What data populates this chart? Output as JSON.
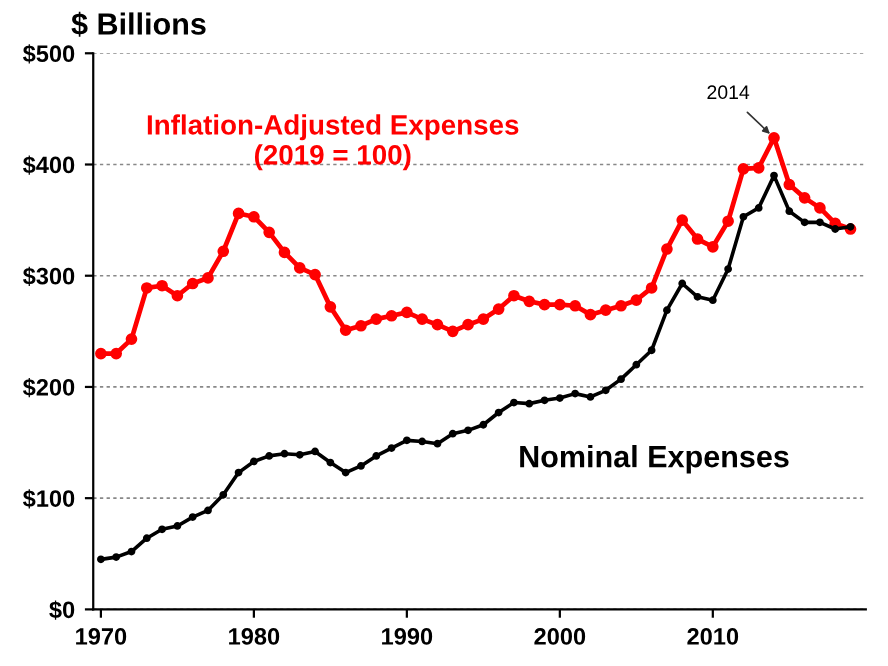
{
  "chart_data": {
    "type": "line",
    "ylabel": "$ Billions",
    "x": [
      1970,
      1971,
      1972,
      1973,
      1974,
      1975,
      1976,
      1977,
      1978,
      1979,
      1980,
      1981,
      1982,
      1983,
      1984,
      1985,
      1986,
      1987,
      1988,
      1989,
      1990,
      1991,
      1992,
      1993,
      1994,
      1995,
      1996,
      1997,
      1998,
      1999,
      2000,
      2001,
      2002,
      2003,
      2004,
      2005,
      2006,
      2007,
      2008,
      2009,
      2010,
      2011,
      2012,
      2013,
      2014,
      2015,
      2016,
      2017,
      2018,
      2019
    ],
    "series": [
      {
        "name": "Inflation-Adjusted Expenses\n(2019 = 100)",
        "color": "#ff0000",
        "values": [
          230,
          230,
          243,
          289,
          291,
          282,
          293,
          298,
          322,
          356,
          353,
          339,
          321,
          307,
          301,
          272,
          251,
          255,
          261,
          264,
          267,
          261,
          256,
          250,
          256,
          261,
          270,
          282,
          277,
          274,
          274,
          273,
          265,
          269,
          273,
          278,
          289,
          324,
          350,
          333,
          326,
          349,
          396,
          397,
          424,
          382,
          370,
          361,
          347,
          342
        ]
      },
      {
        "name": "Nominal Expenses",
        "color": "#000000",
        "values": [
          45,
          47,
          52,
          64,
          72,
          75,
          83,
          89,
          103,
          123,
          133,
          138,
          140,
          139,
          142,
          132,
          123,
          129,
          138,
          145,
          152,
          151,
          149,
          158,
          161,
          166,
          177,
          186,
          185,
          188,
          190,
          194,
          191,
          197,
          207,
          220,
          233,
          269,
          293,
          281,
          278,
          306,
          353,
          361,
          390,
          358,
          348,
          348,
          342,
          344
        ]
      }
    ],
    "xlim": [
      1969.5,
      2020
    ],
    "xticks": [
      1970,
      1980,
      1990,
      2000,
      2010
    ],
    "ylim": [
      0,
      500
    ],
    "yticks": [
      {
        "value": 0,
        "label": "$0"
      },
      {
        "value": 100,
        "label": "$100"
      },
      {
        "value": 200,
        "label": "$200"
      },
      {
        "value": 300,
        "label": "$300"
      },
      {
        "value": 400,
        "label": "$400"
      },
      {
        "value": 500,
        "label": "$500"
      }
    ],
    "grid": "y",
    "marker": "circle",
    "line_style": "solid",
    "annotations": [
      {
        "text": "2014",
        "x": 2014,
        "y": 424
      }
    ]
  }
}
